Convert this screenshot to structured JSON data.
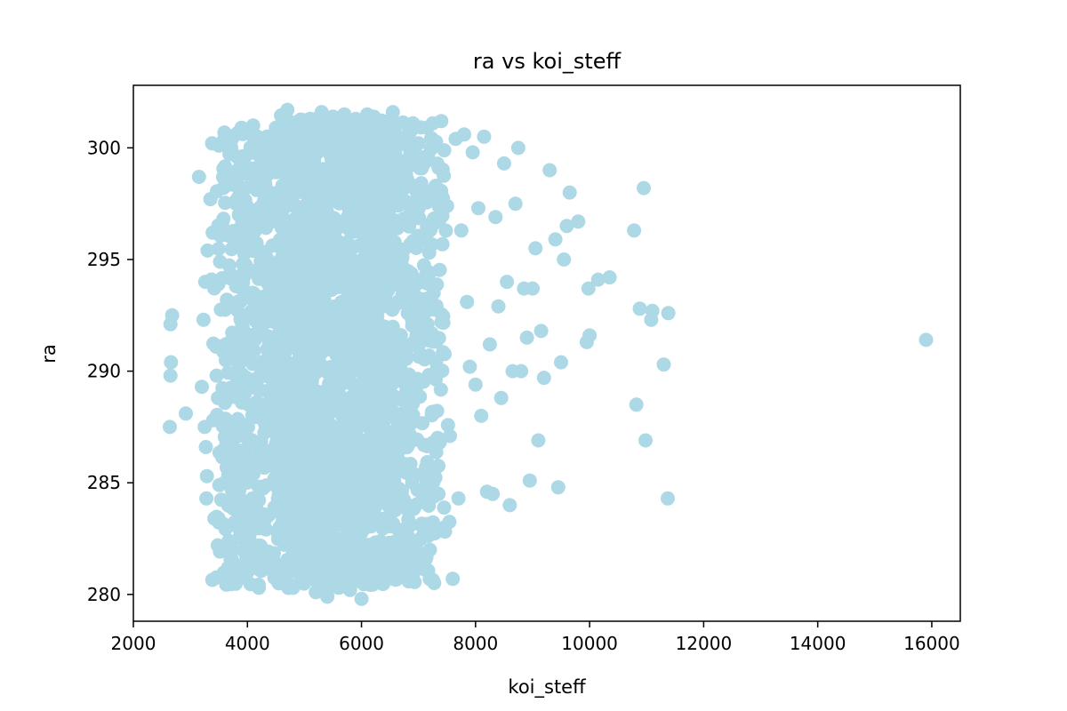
{
  "chart_data": {
    "type": "scatter",
    "title": "ra vs koi_steff",
    "xlabel": "koi_steff",
    "ylabel": "ra",
    "xlim": [
      2000,
      16500
    ],
    "ylim": [
      278.8,
      302.8
    ],
    "xticks": [
      2000,
      4000,
      6000,
      8000,
      10000,
      12000,
      14000,
      16000
    ],
    "xtick_labels": [
      "2000",
      "4000",
      "6000",
      "8000",
      "10000",
      "12000",
      "14000",
      "16000"
    ],
    "yticks": [
      280,
      285,
      290,
      295,
      300
    ],
    "ytick_labels": [
      "280",
      "285",
      "290",
      "295",
      "300"
    ],
    "grid": false,
    "marker_color": "#add8e6",
    "series": [
      {
        "name": "ra",
        "points": [
          [
            2650,
            292.1
          ],
          [
            2680,
            292.5
          ],
          [
            2660,
            290.4
          ],
          [
            2650,
            289.8
          ],
          [
            2640,
            287.5
          ],
          [
            2920,
            288.1
          ],
          [
            3150,
            298.7
          ],
          [
            3200,
            289.3
          ],
          [
            3230,
            292.3
          ],
          [
            3260,
            294.0
          ],
          [
            3250,
            287.5
          ],
          [
            3270,
            286.6
          ],
          [
            3290,
            285.3
          ],
          [
            3280,
            284.3
          ],
          [
            3300,
            295.4
          ],
          [
            3350,
            297.7
          ],
          [
            3380,
            300.2
          ],
          [
            3390,
            296.2
          ],
          [
            3400,
            287.8
          ],
          [
            3420,
            283.4
          ],
          [
            3450,
            291.1
          ],
          [
            3460,
            289.8
          ],
          [
            3480,
            282.2
          ],
          [
            3500,
            300.1
          ],
          [
            3520,
            294.9
          ],
          [
            3600,
            285.0
          ],
          [
            3650,
            298.6
          ],
          [
            3700,
            300.5
          ],
          [
            3720,
            281.6
          ],
          [
            3800,
            300.6
          ],
          [
            3850,
            290.5
          ],
          [
            3900,
            281.3
          ],
          [
            4000,
            281.0
          ],
          [
            4050,
            289.3
          ],
          [
            4100,
            301.0
          ],
          [
            4200,
            280.3
          ],
          [
            4250,
            299.5
          ],
          [
            4400,
            281.5
          ],
          [
            4500,
            300.9
          ],
          [
            4550,
            280.5
          ],
          [
            4600,
            301.4
          ],
          [
            4700,
            301.7
          ],
          [
            4800,
            280.3
          ],
          [
            4900,
            301.2
          ],
          [
            5000,
            280.8
          ],
          [
            5100,
            301.3
          ],
          [
            5200,
            280.1
          ],
          [
            5300,
            301.6
          ],
          [
            5400,
            279.9
          ],
          [
            5500,
            301.4
          ],
          [
            5600,
            280.3
          ],
          [
            5700,
            301.5
          ],
          [
            5800,
            280.2
          ],
          [
            5900,
            301.3
          ],
          [
            6000,
            279.8
          ],
          [
            6100,
            301.5
          ],
          [
            6200,
            280.5
          ],
          [
            6300,
            301.2
          ],
          [
            6400,
            280.7
          ],
          [
            6500,
            300.8
          ],
          [
            6550,
            301.6
          ],
          [
            6600,
            281.5
          ],
          [
            6700,
            300.4
          ],
          [
            6750,
            282.3
          ],
          [
            6800,
            298.6
          ],
          [
            6900,
            301.1
          ],
          [
            6950,
            281.9
          ],
          [
            7000,
            300.2
          ],
          [
            7050,
            283.1
          ],
          [
            7100,
            299.3
          ],
          [
            7150,
            300.9
          ],
          [
            7200,
            282.0
          ],
          [
            7250,
            301.1
          ],
          [
            7300,
            298.3
          ],
          [
            7350,
            284.5
          ],
          [
            7400,
            301.2
          ],
          [
            7450,
            283.0
          ],
          [
            7500,
            297.4
          ],
          [
            7550,
            287.1
          ],
          [
            7600,
            280.7
          ],
          [
            7650,
            300.4
          ],
          [
            7700,
            284.3
          ],
          [
            7750,
            296.3
          ],
          [
            7800,
            300.6
          ],
          [
            7850,
            293.1
          ],
          [
            7900,
            290.2
          ],
          [
            7950,
            299.8
          ],
          [
            8000,
            289.4
          ],
          [
            8050,
            297.3
          ],
          [
            8100,
            288.0
          ],
          [
            8150,
            300.5
          ],
          [
            8200,
            284.6
          ],
          [
            8250,
            291.2
          ],
          [
            8300,
            284.5
          ],
          [
            8350,
            296.9
          ],
          [
            8400,
            292.9
          ],
          [
            8450,
            288.8
          ],
          [
            8500,
            299.3
          ],
          [
            8550,
            294.0
          ],
          [
            8600,
            284.0
          ],
          [
            8650,
            290.0
          ],
          [
            8700,
            297.5
          ],
          [
            8750,
            300.0
          ],
          [
            8800,
            290.0
          ],
          [
            8850,
            293.7
          ],
          [
            8900,
            291.5
          ],
          [
            8950,
            285.1
          ],
          [
            9000,
            293.7
          ],
          [
            9050,
            295.5
          ],
          [
            9100,
            286.9
          ],
          [
            9150,
            291.8
          ],
          [
            9200,
            289.7
          ],
          [
            9300,
            299.0
          ],
          [
            9400,
            295.9
          ],
          [
            9450,
            284.8
          ],
          [
            9500,
            290.4
          ],
          [
            9550,
            295.0
          ],
          [
            9600,
            296.5
          ],
          [
            9650,
            298.0
          ],
          [
            9800,
            296.7
          ],
          [
            9950,
            291.3
          ],
          [
            9980,
            293.7
          ],
          [
            10000,
            291.6
          ],
          [
            10150,
            294.1
          ],
          [
            10350,
            294.2
          ],
          [
            10780,
            296.3
          ],
          [
            10820,
            288.5
          ],
          [
            10880,
            292.8
          ],
          [
            10950,
            298.2
          ],
          [
            10980,
            286.9
          ],
          [
            11080,
            292.3
          ],
          [
            11100,
            292.7
          ],
          [
            11300,
            290.3
          ],
          [
            11370,
            284.3
          ],
          [
            11380,
            292.6
          ],
          [
            15900,
            291.4
          ]
        ]
      }
    ]
  }
}
